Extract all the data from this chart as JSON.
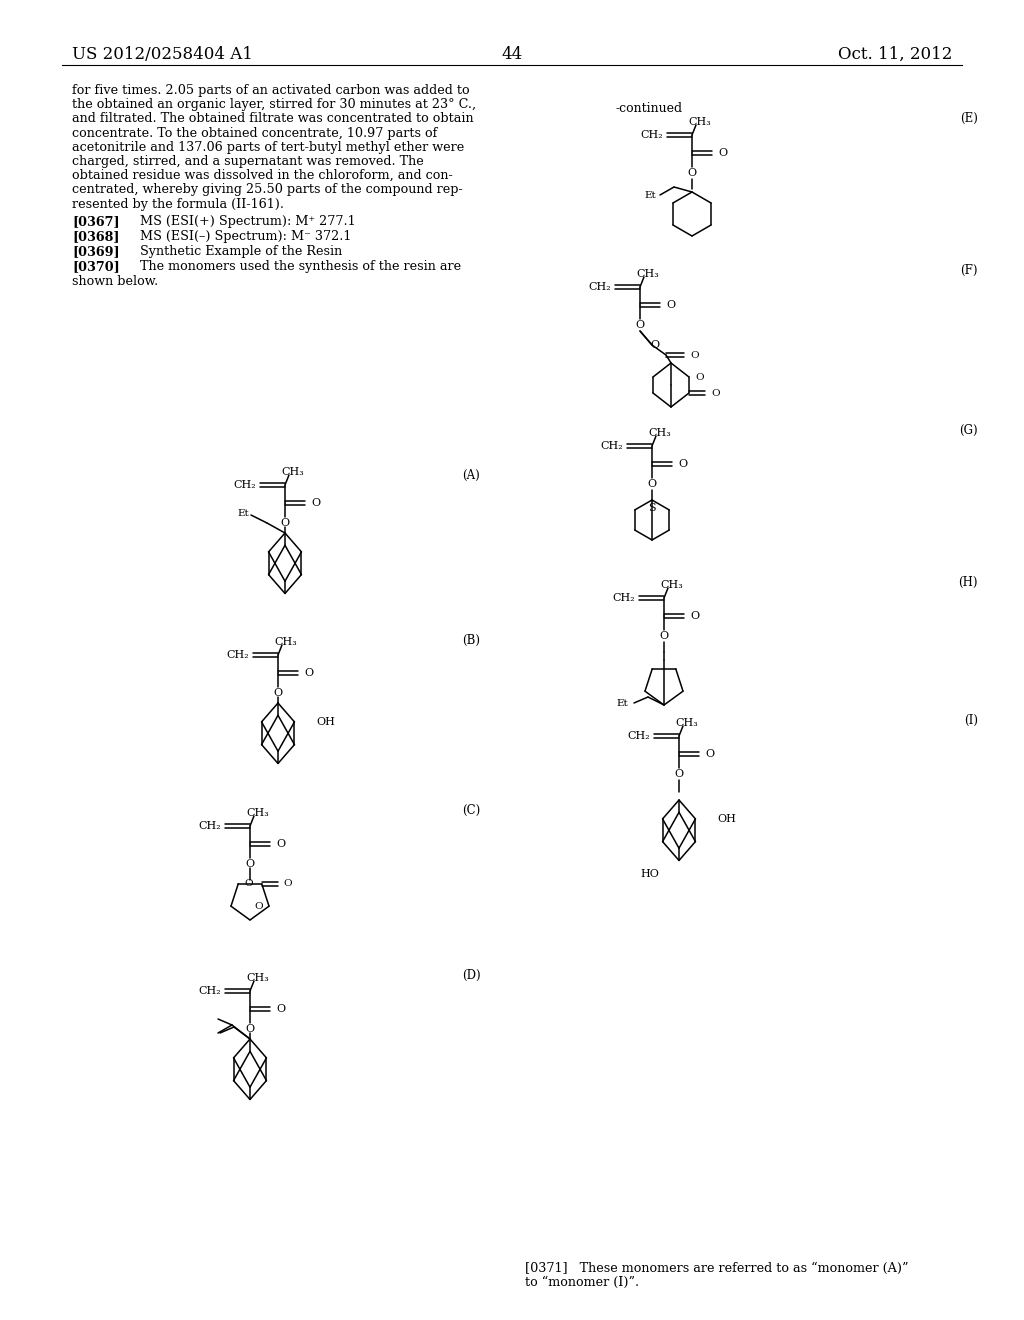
{
  "page_number": "44",
  "patent_number": "US 2012/0258404 A1",
  "patent_date": "Oct. 11, 2012",
  "background_color": "#ffffff",
  "text_color": "#000000",
  "left_text": [
    "for five times. 2.05 parts of an activated carbon was added to",
    "the obtained an organic layer, stirred for 30 minutes at 23° C.,",
    "and filtrated. The obtained filtrate was concentrated to obtain",
    "concentrate. To the obtained concentrate, 10.97 parts of",
    "acetonitrile and 137.06 parts of tert-butyl methyl ether were",
    "charged, stirred, and a supernatant was removed. The",
    "obtained residue was dissolved in the chloroform, and con-",
    "centrated, whereby giving 25.50 parts of the compound rep-",
    "resented by the formula (II-161)."
  ],
  "bottom_text_1": "[0371]   These monomers are referred to as “monomer (A)”",
  "bottom_text_2": "to “monomer (I)”."
}
